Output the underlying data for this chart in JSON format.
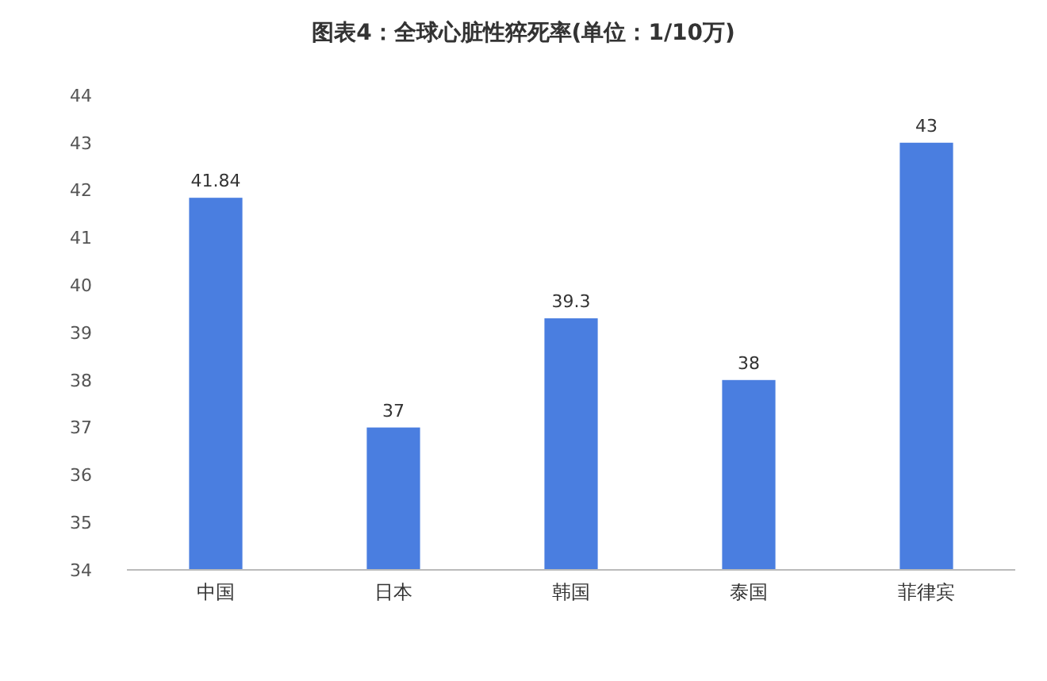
{
  "chart_data": {
    "type": "bar",
    "title": "图表4：全球心脏性猝死率(单位：1/10万)",
    "categories": [
      "中国",
      "日本",
      "韩国",
      "泰国",
      "菲律宾"
    ],
    "values": [
      41.84,
      37,
      39.3,
      38,
      43
    ],
    "color": "#4a7ee0",
    "ylim": [
      34,
      44
    ],
    "yticks": [
      34,
      35,
      36,
      37,
      38,
      39,
      40,
      41,
      42,
      43,
      44
    ],
    "data_labels": true
  }
}
